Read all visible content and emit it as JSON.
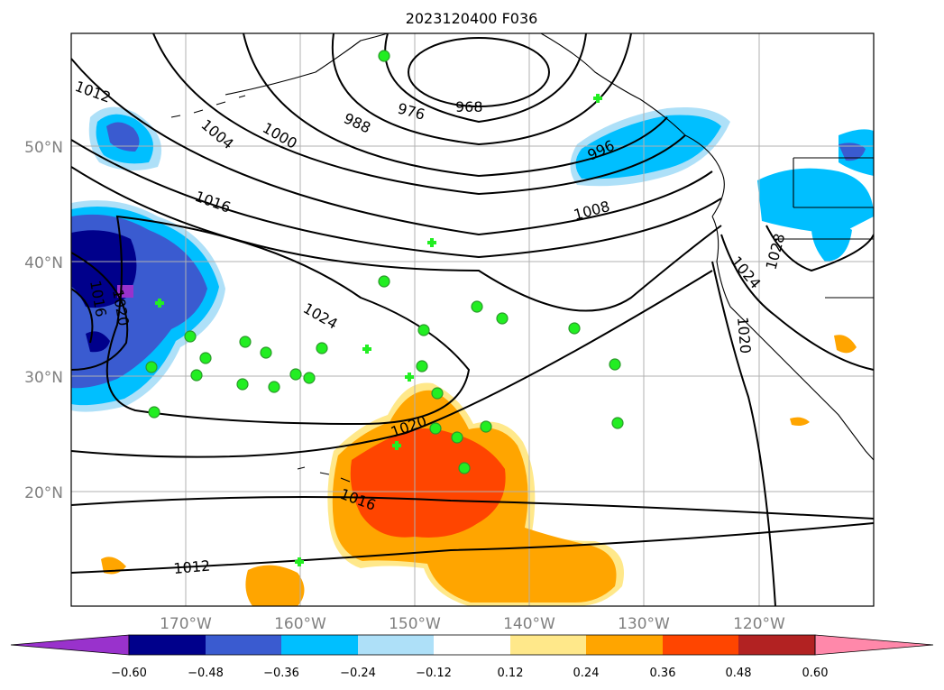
{
  "title": "2023120400 F036",
  "lon_labels": [
    "170°W",
    "160°W",
    "150°W",
    "140°W",
    "130°W",
    "120°W"
  ],
  "lat_labels": [
    "50°N",
    "40°N",
    "30°N",
    "20°N"
  ],
  "isobar_labels": [
    "1012",
    "1004",
    "1000",
    "988",
    "976",
    "968",
    "996",
    "1016",
    "1008",
    "1016",
    "1020",
    "1024",
    "1028",
    "1024",
    "1020",
    "1020",
    "1016",
    "1012"
  ],
  "colorbar": {
    "ticks": [
      "−0.60",
      "−0.48",
      "−0.36",
      "−0.24",
      "−0.12",
      "0.12",
      "0.24",
      "0.36",
      "0.48",
      "0.60"
    ],
    "colors": [
      "#9932cc",
      "#00008b",
      "#3a5bd0",
      "#00bfff",
      "#aee0f8",
      "#ffffff",
      "#ffe88a",
      "#ffa500",
      "#ff4500",
      "#b22222",
      "#ff88aa"
    ]
  },
  "colors": {
    "marker": "#22ee22",
    "marker_edge": "#2a9a2a",
    "isobar": "#000000",
    "grid": "#b0b0b0"
  }
}
